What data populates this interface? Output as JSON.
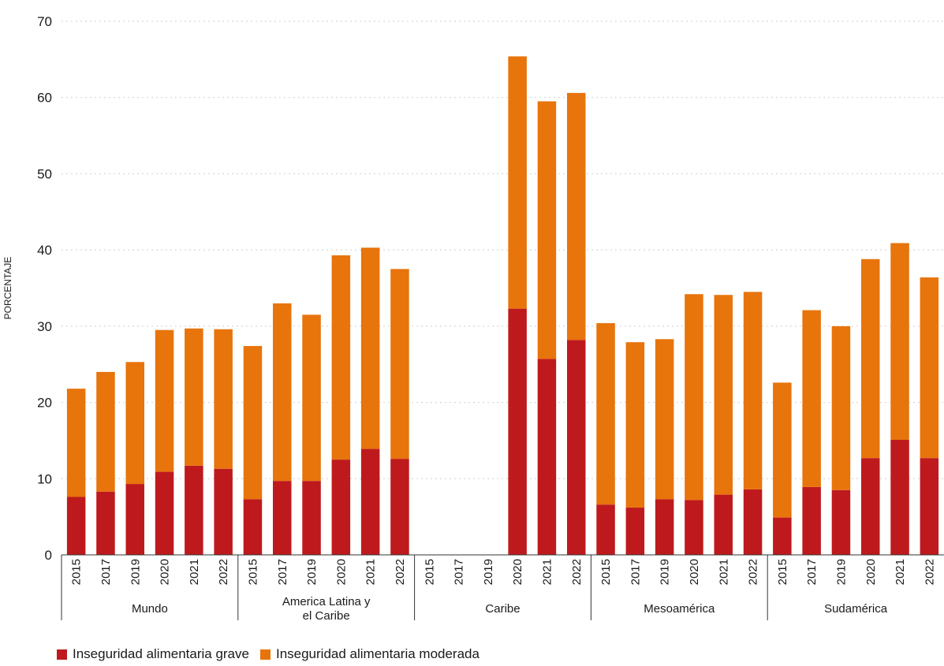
{
  "chart_data": {
    "type": "bar",
    "stacked": true,
    "ylabel": "PORCENTAJE",
    "ylim": [
      0,
      70
    ],
    "yticks": [
      0,
      10,
      20,
      30,
      40,
      50,
      60,
      70
    ],
    "grid": true,
    "legend_position": "bottom-left",
    "groups": [
      {
        "name": "Mundo",
        "categories": [
          "2015",
          "2017",
          "2019",
          "2020",
          "2021",
          "2022"
        ]
      },
      {
        "name": "America Latina y el Caribe",
        "lines": [
          "America Latina y",
          "el Caribe"
        ],
        "categories": [
          "2015",
          "2017",
          "2019",
          "2020",
          "2021",
          "2022"
        ]
      },
      {
        "name": "Caribe",
        "categories": [
          "2015",
          "2017",
          "2019",
          "2020",
          "2021",
          "2022"
        ]
      },
      {
        "name": "Mesoamérica",
        "categories": [
          "2015",
          "2017",
          "2019",
          "2020",
          "2021",
          "2022"
        ]
      },
      {
        "name": "Sudamérica",
        "categories": [
          "2015",
          "2017",
          "2019",
          "2020",
          "2021",
          "2022"
        ]
      }
    ],
    "series": [
      {
        "name": "Inseguridad alimentaria grave",
        "color": "#be1a1d",
        "values": [
          7.6,
          8.3,
          9.3,
          10.9,
          11.7,
          11.3,
          7.3,
          9.7,
          9.7,
          12.5,
          13.9,
          12.6,
          null,
          null,
          null,
          32.3,
          25.7,
          28.2,
          6.6,
          6.2,
          7.3,
          7.2,
          7.9,
          8.6,
          4.9,
          8.9,
          8.5,
          12.7,
          15.1,
          12.7
        ]
      },
      {
        "name": "Inseguridad alimentaria moderada",
        "color": "#e8740c",
        "values": [
          14.2,
          15.7,
          16.0,
          18.6,
          18.0,
          18.3,
          20.1,
          23.3,
          21.8,
          26.8,
          26.4,
          24.9,
          null,
          null,
          null,
          33.1,
          33.8,
          32.4,
          23.8,
          21.7,
          21.0,
          27.0,
          26.2,
          25.9,
          17.7,
          23.2,
          21.5,
          26.1,
          25.8,
          23.7
        ]
      }
    ]
  }
}
